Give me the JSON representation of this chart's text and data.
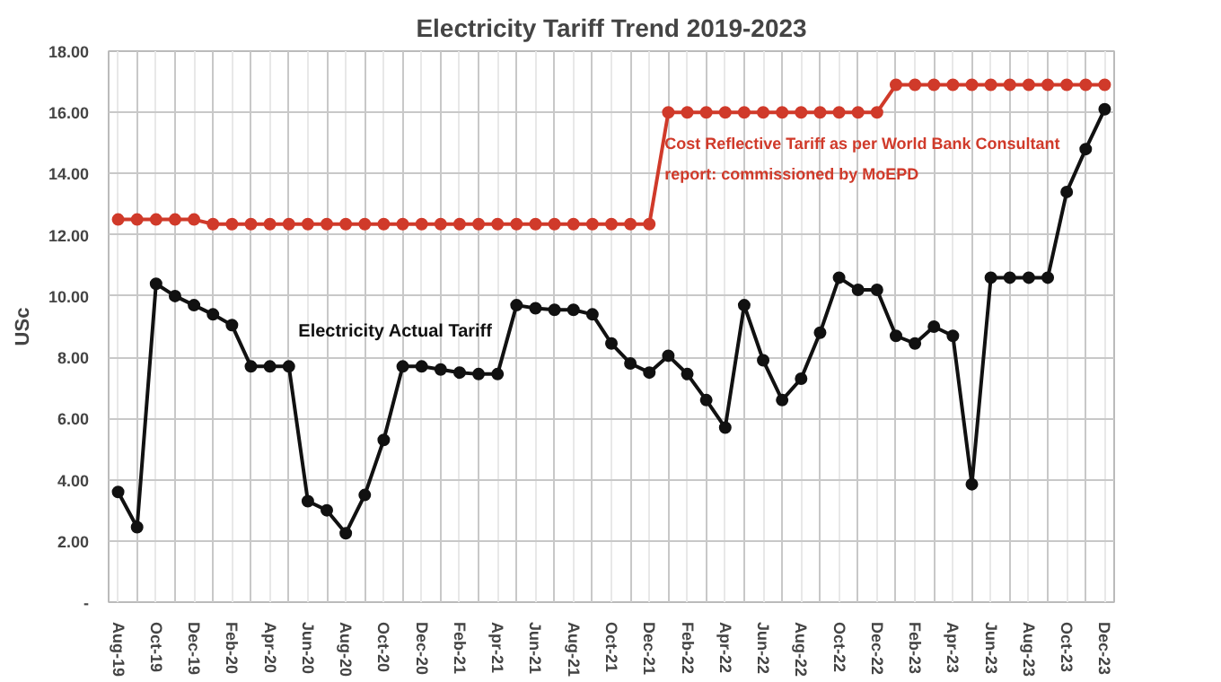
{
  "chart_data": {
    "type": "line",
    "title": "Electricity Tariff Trend 2019-2023",
    "ylabel": "USc",
    "categories": [
      "Aug-19",
      null,
      "Oct-19",
      null,
      "Dec-19",
      null,
      "Feb-20",
      null,
      "Apr-20",
      null,
      "Jun-20",
      null,
      "Aug-20",
      null,
      "Oct-20",
      null,
      "Dec-20",
      null,
      "Feb-21",
      null,
      "Apr-21",
      null,
      "Jun-21",
      null,
      "Aug-21",
      null,
      "Oct-21",
      null,
      "Dec-21",
      null,
      "Feb-22",
      null,
      "Apr-22",
      null,
      "Jun-22",
      null,
      "Aug-22",
      null,
      "Oct-22",
      null,
      "Dec-22",
      null,
      "Feb-23",
      null,
      "Apr-23",
      null,
      "Jun-23",
      null,
      "Aug-23",
      null,
      "Oct-23",
      null,
      "Dec-23"
    ],
    "series": [
      {
        "name": "Cost Reflective Tariff as per World Bank Consultant report: commissioned by MoEPD",
        "color": "#d03a2a",
        "values": [
          12.5,
          12.5,
          12.5,
          12.5,
          12.5,
          12.35,
          12.35,
          12.35,
          12.35,
          12.35,
          12.35,
          12.35,
          12.35,
          12.35,
          12.35,
          12.35,
          12.35,
          12.35,
          12.35,
          12.35,
          12.35,
          12.35,
          12.35,
          12.35,
          12.35,
          12.35,
          12.35,
          12.35,
          12.35,
          16.0,
          16.0,
          16.0,
          16.0,
          16.0,
          16.0,
          16.0,
          16.0,
          16.0,
          16.0,
          16.0,
          16.0,
          16.9,
          16.9,
          16.9,
          16.9,
          16.9,
          16.9,
          16.9,
          16.9,
          16.9,
          16.9,
          16.9,
          16.9
        ]
      },
      {
        "name": "Electricity Actual Tariff",
        "color": "#111111",
        "values": [
          3.6,
          2.45,
          10.4,
          10.0,
          9.7,
          9.4,
          9.05,
          7.7,
          7.7,
          7.7,
          3.3,
          3.0,
          2.25,
          3.5,
          5.3,
          7.7,
          7.7,
          7.6,
          7.5,
          7.45,
          7.45,
          9.7,
          9.6,
          9.55,
          9.55,
          9.4,
          8.45,
          7.8,
          7.5,
          8.05,
          7.45,
          6.6,
          5.7,
          9.7,
          7.9,
          6.6,
          7.3,
          8.8,
          10.6,
          10.2,
          10.2,
          8.7,
          8.45,
          9.0,
          8.7,
          3.85,
          10.6,
          10.6,
          10.6,
          10.6,
          13.4,
          14.8,
          16.1
        ]
      }
    ],
    "ylim": [
      0,
      18
    ],
    "yticks": [
      {
        "value": 0,
        "label": "-"
      },
      {
        "value": 2,
        "label": "2.00"
      },
      {
        "value": 4,
        "label": "4.00"
      },
      {
        "value": 6,
        "label": "6.00"
      },
      {
        "value": 8,
        "label": "8.00"
      },
      {
        "value": 10,
        "label": "10.00"
      },
      {
        "value": 12,
        "label": "12.00"
      },
      {
        "value": 14,
        "label": "14.00"
      },
      {
        "value": 16,
        "label": "16.00"
      },
      {
        "value": 18,
        "label": "18.00"
      }
    ],
    "grid": true,
    "legend": false,
    "marker": "circle",
    "line_style": "solid"
  }
}
